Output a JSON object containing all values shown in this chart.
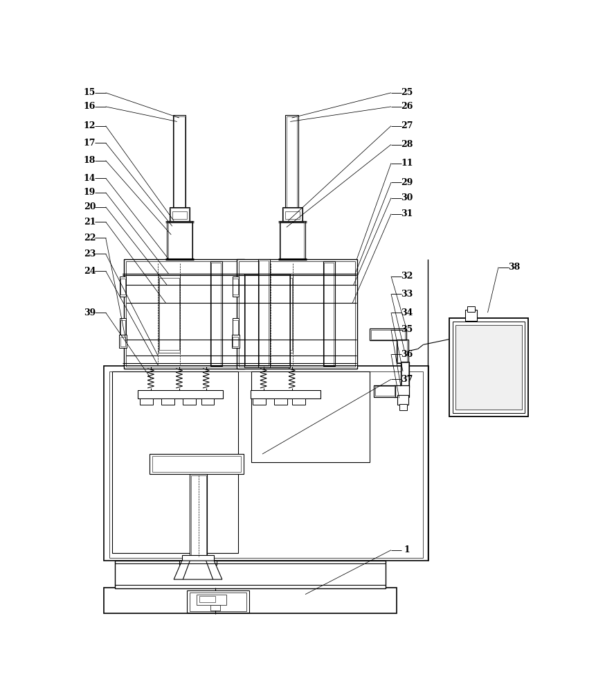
{
  "bg": "#ffffff",
  "lc": "#000000",
  "figsize": [
    8.62,
    10.0
  ],
  "dpi": 100,
  "lw": 0.8
}
